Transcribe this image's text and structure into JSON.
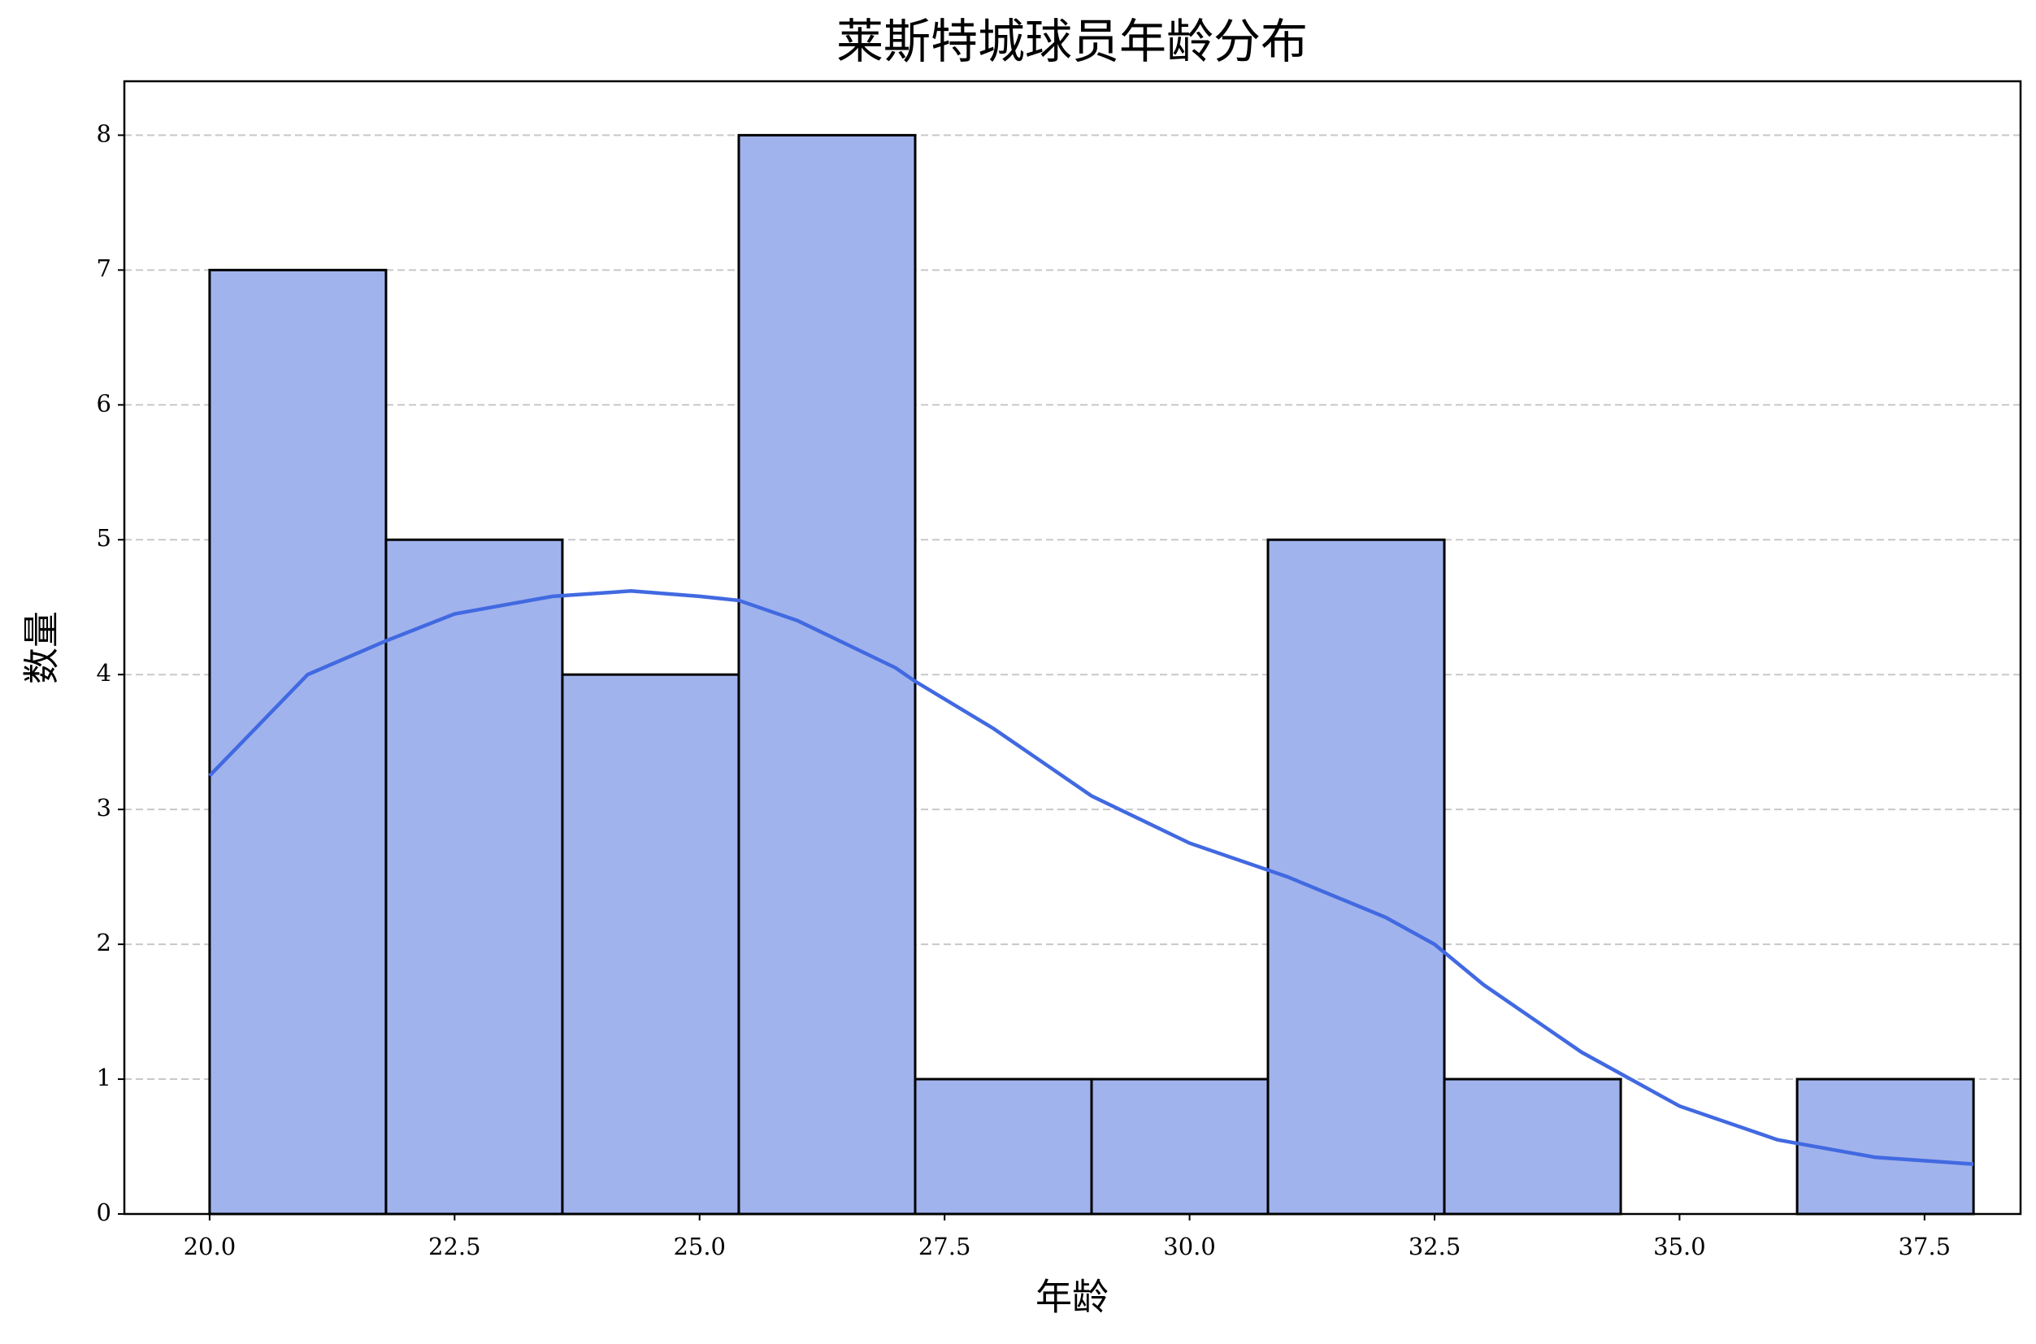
{
  "chart_data": {
    "type": "histogram",
    "title": "莱斯特城球员年龄分布",
    "x_label": "年龄",
    "y_label": "数量",
    "bins": [
      20,
      21.8,
      23.6,
      25.4,
      27.2,
      29,
      30.8,
      32.6,
      34.4,
      36.2,
      38
    ],
    "values": [
      7,
      5,
      4,
      8,
      1,
      1,
      5,
      1,
      0,
      1
    ],
    "color": "#a0b3ec",
    "edge_color": "#000000",
    "kde": {
      "color": "#4169e1",
      "x": [
        20,
        21,
        21.8,
        22.5,
        23.5,
        24.3,
        25,
        25.4,
        26,
        27,
        27.2,
        28,
        29,
        30,
        30.8,
        31,
        32,
        32.5,
        33,
        34,
        35,
        36,
        37,
        38
      ],
      "values": [
        3.25,
        4.0,
        4.25,
        4.45,
        4.58,
        4.62,
        4.58,
        4.55,
        4.4,
        4.05,
        3.95,
        3.6,
        3.1,
        2.75,
        2.55,
        2.5,
        2.2,
        2.0,
        1.7,
        1.2,
        0.8,
        0.55,
        0.42,
        0.37
      ]
    },
    "xlim": [
      19.13,
      38.48
    ],
    "ylim": [
      0,
      8.4
    ],
    "xticks": [
      {
        "value": 20,
        "label": "20.0"
      },
      22.5,
      {
        "value": 25,
        "label": "25.0"
      },
      27.5,
      {
        "value": 30,
        "label": "30.0"
      },
      32.5,
      {
        "value": 35,
        "label": "35.0"
      },
      37.5
    ],
    "yticks": [
      0,
      1,
      2,
      3,
      4,
      5,
      6,
      7,
      8
    ],
    "grid": true
  }
}
